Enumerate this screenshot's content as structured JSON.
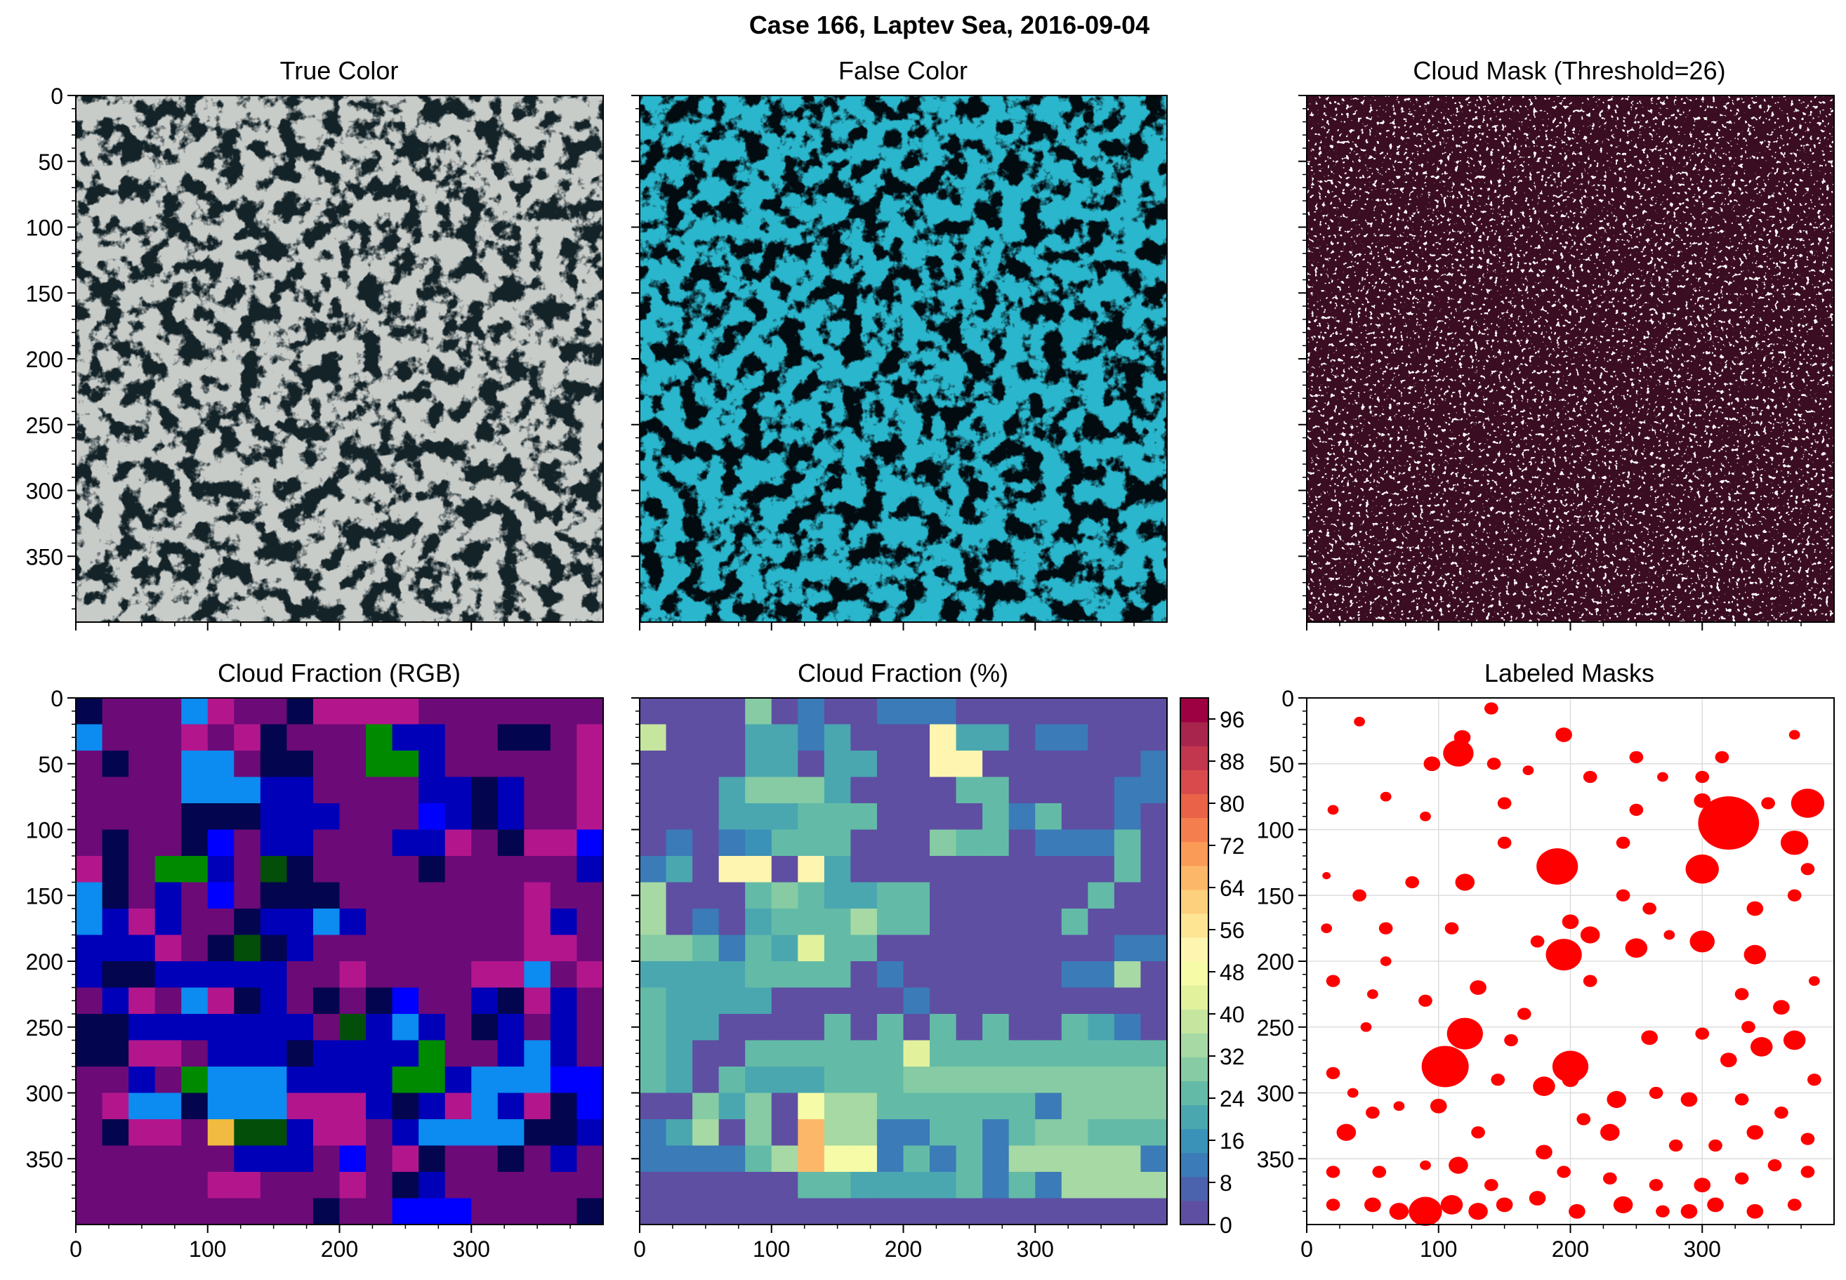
{
  "figure": {
    "suptitle": "Case 166, Laptev Sea, 2016-09-04"
  },
  "panels": {
    "true_color": {
      "title": "True Color"
    },
    "false_color": {
      "title": "False Color"
    },
    "cloud_mask": {
      "title": "Cloud Mask (Threshold=26)"
    },
    "cloud_fraction_rgb": {
      "title": "Cloud Fraction (RGB)"
    },
    "cloud_fraction_pct": {
      "title": "Cloud Fraction (%)"
    },
    "labeled_masks": {
      "title": "Labeled Masks"
    }
  },
  "axes": {
    "y_ticks": [
      0,
      50,
      100,
      150,
      200,
      250,
      300,
      350
    ],
    "x_ticks": [
      0,
      100,
      200,
      300
    ],
    "range": [
      0,
      400
    ]
  },
  "colorbar": {
    "ticks": [
      0,
      8,
      16,
      24,
      32,
      40,
      48,
      56,
      64,
      72,
      80,
      88,
      96
    ],
    "range": [
      0,
      100
    ],
    "colors": [
      "#5e4fa2",
      "#4b62ad",
      "#3a7bb8",
      "#3b92b8",
      "#4aa7b0",
      "#63bba7",
      "#86cba4",
      "#a6d9a3",
      "#c6e6a0",
      "#e2f29c",
      "#f5fba7",
      "#fef6b0",
      "#fee594",
      "#fdd07e",
      "#fdb768",
      "#fb9b58",
      "#f57e4e",
      "#ea6248",
      "#d94a4c",
      "#c2364e",
      "#a8254e",
      "#9e0142"
    ]
  },
  "chart_data": [
    {
      "type": "heatmap",
      "title": "True Color",
      "xlim": [
        0,
        400
      ],
      "ylim": [
        400,
        0
      ],
      "colors": {
        "ice": "#c8ccc9",
        "water": "#142328"
      }
    },
    {
      "type": "heatmap",
      "title": "False Color",
      "xlim": [
        0,
        400
      ],
      "ylim": [
        400,
        0
      ],
      "colors": {
        "ice": "#2ab6cc",
        "water": "#020b10"
      }
    },
    {
      "type": "heatmap",
      "title": "Cloud Mask (Threshold=26)",
      "xlim": [
        0,
        400
      ],
      "ylim": [
        400,
        0
      ],
      "colors": {
        "masked": "#3a0e22",
        "clear": "#ffffff"
      }
    },
    {
      "type": "heatmap",
      "title": "Cloud Fraction (RGB)",
      "xlim": [
        0,
        400
      ],
      "ylim": [
        400,
        0
      ],
      "cell_size": 20,
      "palette": {
        "P": "#6c0a78",
        "M": "#b3168c",
        "N": "#03064e",
        "B": "#0000b8",
        "U": "#0000ff",
        "C": "#0c8bf0",
        "G": "#008a00",
        "D": "#034f0a",
        "Y": "#f0bb40"
      },
      "grid": [
        "NPPPCMPPNMMMMPPPPPPP",
        "CPPPMPMNPPPGBBPPNNPM",
        "PNPPCCPNNPPGGBPPPPPM",
        "PPPPCCCBBPPPPBBNBPPM",
        "PPPPNNNBBBPPPUBNBPPM",
        "PNPPNUPBBPPPBBMPNMMU",
        "MNPGGBPDNPPPPNPPPPPB",
        "CNPBPUPNNNPPPPPPPMPP",
        "CBMBPPNBBCBPPPPPPMBP",
        "BBBMPNDNBPPPPPPPPMMP",
        "BNNBBBBBPPMPPPPMMCPM",
        "PBMPCMNBPNPNUPPBNMBP",
        "NNBBBBBBBPDBCBPNBPBP",
        "NNMMPBBBNBBBBGPPBCBP",
        "PPBPGCCCBBBBGGBCCCUU",
        "PMCCNCCCMMMBNBMCBMNU",
        "PNMMPYDDBMMPBCCCCNNB",
        "PPPPPPBBBPUPMNPPNPBP",
        "PPPPPMMPPPMPNBPPPPPP",
        "PPPPPPPPPNPPUUUPPPPN"
      ]
    },
    {
      "type": "heatmap",
      "title": "Cloud Fraction (%)",
      "xlim": [
        0,
        400
      ],
      "ylim": [
        400,
        0
      ],
      "cell_size": 20,
      "value_range": [
        0,
        100
      ],
      "z": [
        [
          0,
          0,
          0,
          0,
          30,
          0,
          10,
          0,
          0,
          10,
          10,
          10,
          0,
          0,
          0,
          0,
          0,
          0,
          0,
          0
        ],
        [
          40,
          0,
          0,
          0,
          20,
          20,
          10,
          20,
          0,
          0,
          0,
          50,
          20,
          20,
          0,
          10,
          10,
          0,
          0,
          0
        ],
        [
          0,
          0,
          0,
          0,
          20,
          20,
          0,
          20,
          20,
          0,
          0,
          50,
          50,
          0,
          0,
          0,
          0,
          0,
          0,
          10
        ],
        [
          0,
          0,
          0,
          20,
          30,
          30,
          30,
          20,
          0,
          0,
          0,
          0,
          25,
          25,
          0,
          0,
          0,
          0,
          10,
          10
        ],
        [
          0,
          0,
          0,
          20,
          20,
          20,
          25,
          25,
          25,
          0,
          0,
          0,
          0,
          25,
          10,
          25,
          0,
          0,
          10,
          0
        ],
        [
          0,
          10,
          0,
          10,
          15,
          25,
          25,
          25,
          0,
          0,
          0,
          30,
          25,
          25,
          0,
          10,
          10,
          10,
          25,
          0
        ],
        [
          10,
          20,
          0,
          50,
          50,
          0,
          50,
          20,
          0,
          0,
          0,
          0,
          0,
          0,
          0,
          0,
          0,
          0,
          25,
          0
        ],
        [
          35,
          0,
          0,
          0,
          25,
          30,
          25,
          20,
          20,
          25,
          25,
          0,
          0,
          0,
          0,
          0,
          0,
          25,
          0,
          0
        ],
        [
          35,
          0,
          10,
          0,
          20,
          25,
          25,
          25,
          35,
          25,
          25,
          0,
          0,
          0,
          0,
          0,
          25,
          0,
          0,
          0
        ],
        [
          30,
          30,
          25,
          10,
          25,
          20,
          45,
          25,
          25,
          0,
          0,
          0,
          0,
          0,
          0,
          0,
          0,
          0,
          10,
          10
        ],
        [
          20,
          20,
          20,
          20,
          25,
          25,
          25,
          25,
          0,
          10,
          0,
          0,
          0,
          0,
          0,
          0,
          10,
          10,
          35,
          0
        ],
        [
          25,
          20,
          20,
          20,
          20,
          0,
          0,
          0,
          0,
          0,
          10,
          0,
          0,
          0,
          0,
          0,
          0,
          0,
          0,
          0
        ],
        [
          25,
          20,
          20,
          0,
          0,
          0,
          0,
          25,
          0,
          25,
          0,
          25,
          0,
          25,
          0,
          0,
          25,
          20,
          10,
          0
        ],
        [
          25,
          20,
          0,
          0,
          25,
          25,
          25,
          25,
          25,
          25,
          45,
          25,
          25,
          25,
          25,
          25,
          25,
          25,
          25,
          25
        ],
        [
          25,
          20,
          0,
          25,
          20,
          20,
          20,
          25,
          25,
          25,
          30,
          30,
          30,
          30,
          30,
          30,
          30,
          30,
          30,
          30
        ],
        [
          0,
          0,
          30,
          20,
          30,
          0,
          48,
          35,
          35,
          25,
          25,
          25,
          25,
          25,
          25,
          10,
          30,
          30,
          30,
          30
        ],
        [
          10,
          20,
          35,
          0,
          30,
          0,
          66,
          35,
          35,
          10,
          10,
          25,
          25,
          10,
          25,
          30,
          30,
          25,
          25,
          25
        ],
        [
          10,
          10,
          10,
          10,
          25,
          35,
          66,
          48,
          48,
          10,
          25,
          10,
          25,
          10,
          35,
          35,
          35,
          35,
          35,
          10
        ],
        [
          0,
          0,
          0,
          0,
          0,
          0,
          25,
          25,
          20,
          20,
          20,
          20,
          25,
          10,
          25,
          10,
          35,
          35,
          35,
          35
        ],
        [
          0,
          0,
          0,
          0,
          0,
          0,
          0,
          0,
          0,
          0,
          0,
          0,
          0,
          0,
          0,
          0,
          0,
          0,
          0,
          0
        ]
      ]
    },
    {
      "type": "scatter",
      "title": "Labeled Masks",
      "xlim": [
        0,
        400
      ],
      "ylim": [
        400,
        0
      ],
      "color": "#ff0000",
      "blobs": [
        [
          40,
          18,
          4
        ],
        [
          118,
          30,
          6
        ],
        [
          140,
          8,
          5
        ],
        [
          195,
          28,
          6
        ],
        [
          250,
          45,
          5
        ],
        [
          315,
          45,
          5
        ],
        [
          370,
          28,
          4
        ],
        [
          95,
          50,
          6
        ],
        [
          115,
          42,
          11
        ],
        [
          142,
          50,
          5
        ],
        [
          168,
          55,
          4
        ],
        [
          215,
          60,
          5
        ],
        [
          270,
          60,
          4
        ],
        [
          300,
          60,
          5
        ],
        [
          20,
          85,
          4
        ],
        [
          60,
          75,
          4
        ],
        [
          90,
          90,
          4
        ],
        [
          150,
          80,
          5
        ],
        [
          250,
          85,
          5
        ],
        [
          300,
          78,
          6
        ],
        [
          320,
          95,
          22
        ],
        [
          350,
          80,
          5
        ],
        [
          380,
          80,
          12
        ],
        [
          370,
          110,
          10
        ],
        [
          190,
          128,
          15
        ],
        [
          300,
          130,
          12
        ],
        [
          120,
          140,
          7
        ],
        [
          80,
          140,
          5
        ],
        [
          40,
          150,
          5
        ],
        [
          15,
          135,
          3
        ],
        [
          240,
          150,
          5
        ],
        [
          260,
          160,
          5
        ],
        [
          200,
          170,
          6
        ],
        [
          340,
          160,
          6
        ],
        [
          370,
          150,
          5
        ],
        [
          380,
          130,
          5
        ],
        [
          60,
          175,
          5
        ],
        [
          110,
          175,
          5
        ],
        [
          175,
          185,
          5
        ],
        [
          215,
          180,
          7
        ],
        [
          195,
          195,
          13
        ],
        [
          250,
          190,
          8
        ],
        [
          300,
          185,
          9
        ],
        [
          340,
          195,
          8
        ],
        [
          20,
          215,
          5
        ],
        [
          50,
          225,
          4
        ],
        [
          90,
          230,
          5
        ],
        [
          130,
          220,
          6
        ],
        [
          215,
          215,
          5
        ],
        [
          330,
          225,
          5
        ],
        [
          360,
          235,
          6
        ],
        [
          385,
          215,
          4
        ],
        [
          120,
          255,
          13
        ],
        [
          105,
          280,
          17
        ],
        [
          155,
          260,
          5
        ],
        [
          165,
          240,
          5
        ],
        [
          180,
          295,
          8
        ],
        [
          200,
          280,
          13
        ],
        [
          260,
          258,
          6
        ],
        [
          300,
          255,
          5
        ],
        [
          320,
          275,
          6
        ],
        [
          345,
          265,
          8
        ],
        [
          370,
          260,
          8
        ],
        [
          385,
          290,
          5
        ],
        [
          20,
          285,
          5
        ],
        [
          35,
          300,
          4
        ],
        [
          50,
          315,
          5
        ],
        [
          70,
          310,
          4
        ],
        [
          100,
          310,
          6
        ],
        [
          145,
          290,
          5
        ],
        [
          200,
          290,
          6
        ],
        [
          210,
          320,
          5
        ],
        [
          235,
          305,
          7
        ],
        [
          265,
          300,
          5
        ],
        [
          290,
          305,
          6
        ],
        [
          330,
          305,
          5
        ],
        [
          360,
          315,
          5
        ],
        [
          380,
          335,
          5
        ],
        [
          30,
          330,
          7
        ],
        [
          130,
          330,
          5
        ],
        [
          180,
          345,
          6
        ],
        [
          230,
          330,
          7
        ],
        [
          280,
          340,
          5
        ],
        [
          310,
          340,
          5
        ],
        [
          340,
          330,
          6
        ],
        [
          20,
          360,
          5
        ],
        [
          55,
          360,
          5
        ],
        [
          90,
          355,
          4
        ],
        [
          115,
          355,
          7
        ],
        [
          140,
          370,
          5
        ],
        [
          195,
          360,
          5
        ],
        [
          230,
          365,
          5
        ],
        [
          265,
          370,
          5
        ],
        [
          300,
          370,
          6
        ],
        [
          330,
          365,
          5
        ],
        [
          355,
          355,
          5
        ],
        [
          380,
          360,
          5
        ],
        [
          20,
          385,
          5
        ],
        [
          50,
          385,
          6
        ],
        [
          70,
          390,
          7
        ],
        [
          90,
          390,
          12
        ],
        [
          110,
          385,
          8
        ],
        [
          130,
          390,
          7
        ],
        [
          150,
          385,
          6
        ],
        [
          175,
          380,
          6
        ],
        [
          205,
          390,
          6
        ],
        [
          240,
          385,
          7
        ],
        [
          270,
          390,
          5
        ],
        [
          290,
          390,
          6
        ],
        [
          310,
          385,
          6
        ],
        [
          340,
          390,
          6
        ],
        [
          370,
          385,
          5
        ],
        [
          60,
          200,
          4
        ],
        [
          240,
          110,
          5
        ],
        [
          150,
          110,
          5
        ],
        [
          275,
          180,
          4
        ],
        [
          335,
          250,
          5
        ],
        [
          45,
          250,
          4
        ],
        [
          15,
          175,
          4
        ]
      ]
    }
  ]
}
